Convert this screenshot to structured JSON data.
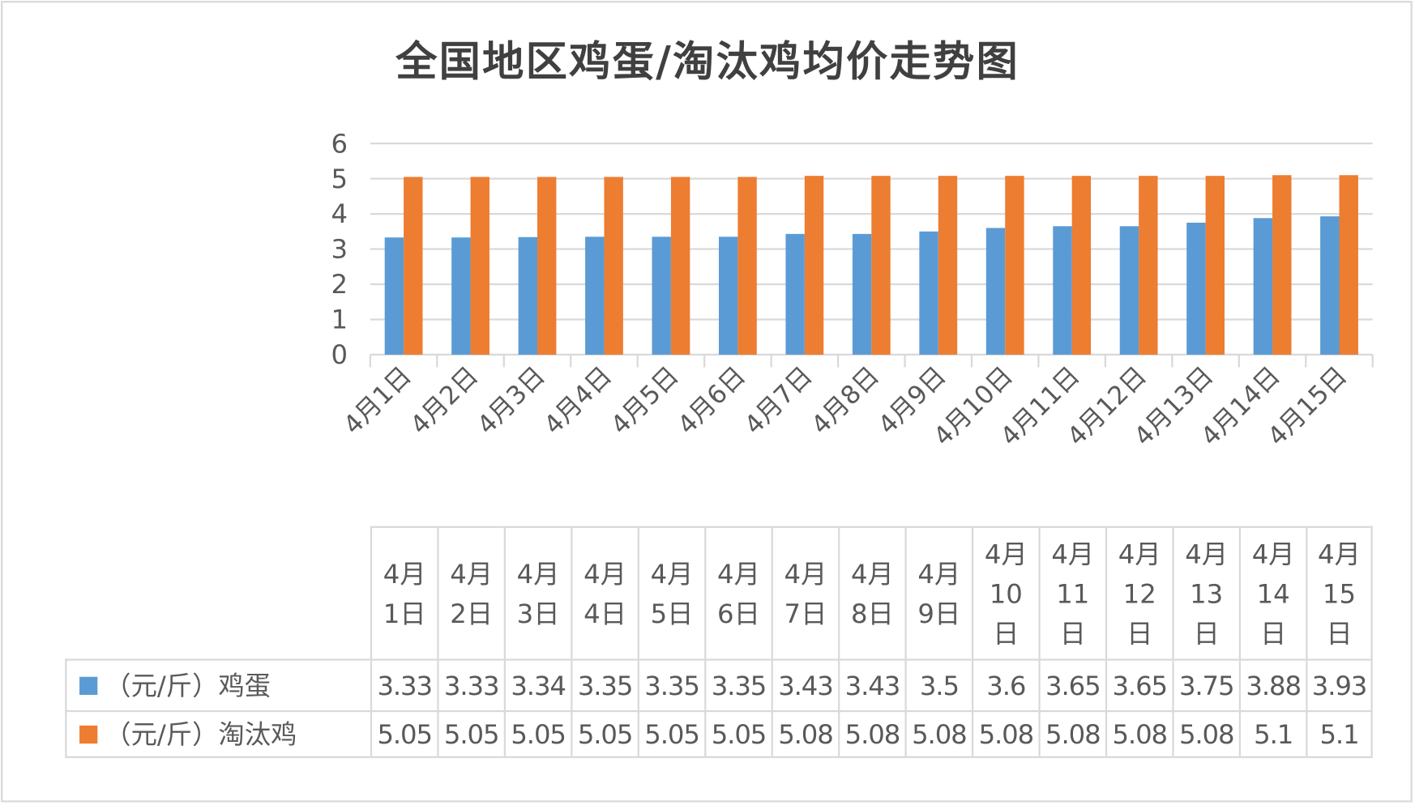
{
  "chart_data": {
    "type": "bar",
    "title": "全国地区鸡蛋/淘汰鸡均价走势图",
    "categories": [
      "4月1日",
      "4月2日",
      "4月3日",
      "4月4日",
      "4月5日",
      "4月6日",
      "4月7日",
      "4月8日",
      "4月9日",
      "4月10日",
      "4月11日",
      "4月12日",
      "4月13日",
      "4月14日",
      "4月15日"
    ],
    "series": [
      {
        "name": "（元/斤）鸡蛋",
        "color": "#5b9bd5",
        "values": [
          3.33,
          3.33,
          3.34,
          3.35,
          3.35,
          3.35,
          3.43,
          3.43,
          3.5,
          3.6,
          3.65,
          3.65,
          3.75,
          3.88,
          3.93
        ]
      },
      {
        "name": "（元/斤）淘汰鸡",
        "color": "#ed7d31",
        "values": [
          5.05,
          5.05,
          5.05,
          5.05,
          5.05,
          5.05,
          5.08,
          5.08,
          5.08,
          5.08,
          5.08,
          5.08,
          5.08,
          5.1,
          5.1
        ]
      }
    ],
    "yticks": [
      0,
      1,
      2,
      3,
      4,
      5,
      6
    ],
    "ylim": [
      0,
      6
    ],
    "grid": true,
    "legend": "data-table-below",
    "xlabel": "",
    "ylabel": ""
  }
}
